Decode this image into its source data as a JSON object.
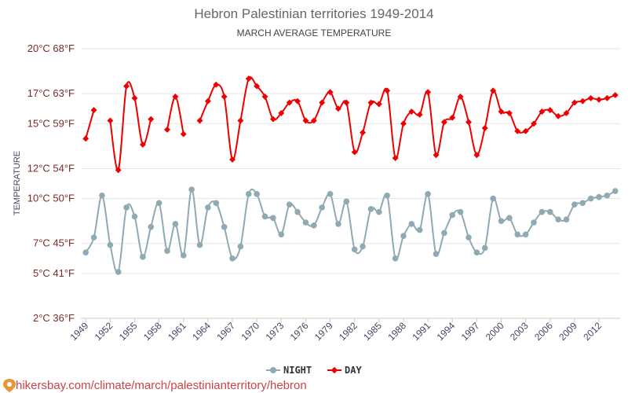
{
  "chart_data": {
    "type": "line",
    "title": "Hebron Palestinian territories 1949-2014",
    "subtitle": "MARCH AVERAGE TEMPERATURE",
    "ylabel": "TEMPERATURE",
    "ylim": [
      2,
      20
    ],
    "y_ticks": [
      {
        "value": 2,
        "label": "2°C 36°F"
      },
      {
        "value": 5,
        "label": "5°C 41°F"
      },
      {
        "value": 7,
        "label": "7°C 45°F"
      },
      {
        "value": 10,
        "label": "10°C 50°F"
      },
      {
        "value": 12,
        "label": "12°C 54°F"
      },
      {
        "value": 15,
        "label": "15°C 59°F"
      },
      {
        "value": 17,
        "label": "17°C 63°F"
      },
      {
        "value": 20,
        "label": "20°C 68°F"
      }
    ],
    "x_tick_labels": [
      "1949",
      "1952",
      "1955",
      "1958",
      "1961",
      "1964",
      "1967",
      "1970",
      "1973",
      "1976",
      "1979",
      "1982",
      "1985",
      "1988",
      "1991",
      "1994",
      "1997",
      "2000",
      "2003",
      "2006",
      "2009",
      "2012"
    ],
    "x": [
      1949,
      1950,
      1951,
      1952,
      1953,
      1954,
      1955,
      1956,
      1957,
      1958,
      1959,
      1960,
      1961,
      1962,
      1963,
      1964,
      1965,
      1966,
      1967,
      1968,
      1969,
      1970,
      1971,
      1972,
      1973,
      1974,
      1975,
      1976,
      1977,
      1978,
      1979,
      1980,
      1981,
      1982,
      1983,
      1984,
      1985,
      1986,
      1987,
      1988,
      1989,
      1990,
      1991,
      1992,
      1993,
      1994,
      1995,
      1996,
      1997,
      1998,
      1999,
      2000,
      2001,
      2002,
      2003,
      2004,
      2005,
      2006,
      2007,
      2008,
      2009,
      2010,
      2011,
      2012,
      2013,
      2014
    ],
    "series": [
      {
        "name": "NIGHT",
        "color": "#90aab4",
        "values": [
          6.4,
          7.4,
          10.2,
          6.9,
          5.1,
          9.4,
          8.8,
          6.1,
          8.1,
          9.7,
          6.5,
          8.3,
          6.2,
          10.6,
          6.9,
          9.4,
          9.7,
          8.1,
          6.0,
          6.8,
          10.3,
          10.3,
          8.8,
          8.7,
          7.6,
          9.6,
          9.1,
          8.4,
          8.2,
          9.4,
          10.3,
          8.3,
          9.8,
          6.6,
          6.8,
          9.3,
          9.1,
          10.2,
          6.0,
          7.5,
          8.3,
          7.9,
          10.3,
          6.3,
          7.7,
          8.9,
          9.1,
          7.4,
          6.4,
          6.7,
          10.0,
          8.5,
          8.7,
          7.6,
          7.6,
          8.4,
          9.1,
          9.1,
          8.6,
          8.6,
          9.6,
          9.7,
          10.0,
          10.1,
          10.2,
          10.5
        ]
      },
      {
        "name": "DAY",
        "color": "#ee0000",
        "values": [
          14.0,
          15.9,
          null,
          15.2,
          11.9,
          17.5,
          16.7,
          13.6,
          15.3,
          null,
          14.6,
          16.8,
          14.3,
          null,
          15.2,
          16.5,
          17.6,
          16.8,
          12.6,
          15.2,
          18.0,
          17.5,
          16.8,
          15.3,
          15.7,
          16.4,
          16.5,
          15.2,
          15.2,
          16.4,
          17.1,
          16.0,
          16.4,
          13.1,
          14.4,
          16.4,
          16.3,
          17.2,
          12.7,
          15.0,
          15.8,
          15.6,
          17.1,
          12.9,
          15.1,
          15.4,
          16.8,
          15.1,
          12.9,
          14.7,
          17.2,
          15.8,
          15.7,
          14.5,
          14.5,
          15.0,
          15.8,
          15.9,
          15.5,
          15.7,
          16.4,
          16.5,
          16.7,
          16.6,
          16.7,
          16.9
        ]
      }
    ],
    "legend_position": "bottom-center",
    "grid": true
  },
  "legend": {
    "night": "NIGHT",
    "day": "DAY"
  },
  "footer": {
    "source_text": "hikersbay.com/climate/march/palestinianterritory/hebron"
  }
}
